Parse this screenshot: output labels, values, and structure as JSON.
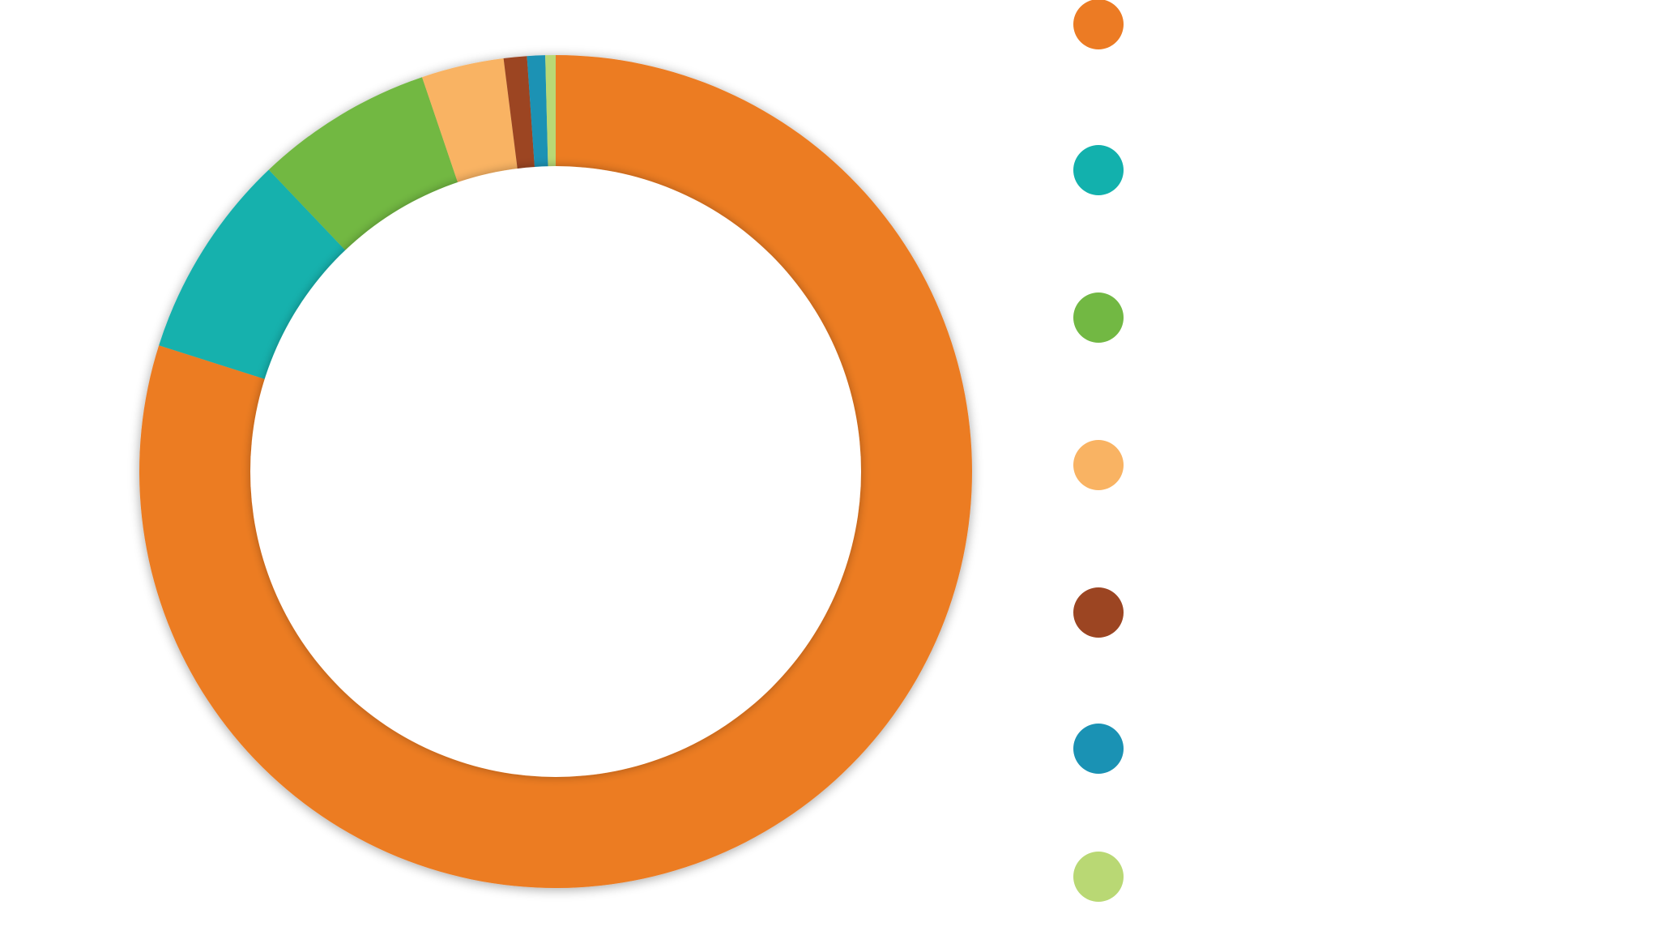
{
  "chart_data": {
    "type": "pie",
    "donut": true,
    "title": "",
    "legend_placement": "right",
    "series": [
      {
        "name": "",
        "value": 79.9,
        "color": "#EC7B24"
      },
      {
        "name": "",
        "value": 8.0,
        "color": "#12B1AD"
      },
      {
        "name": "",
        "value": 6.9,
        "color": "#72B843"
      },
      {
        "name": "",
        "value": 3.2,
        "color": "#F9B363"
      },
      {
        "name": "",
        "value": 0.9,
        "color": "#9C4522"
      },
      {
        "name": "",
        "value": 0.7,
        "color": "#1A92B4"
      },
      {
        "name": "",
        "value": 0.4,
        "color": "#B9D874"
      }
    ]
  }
}
